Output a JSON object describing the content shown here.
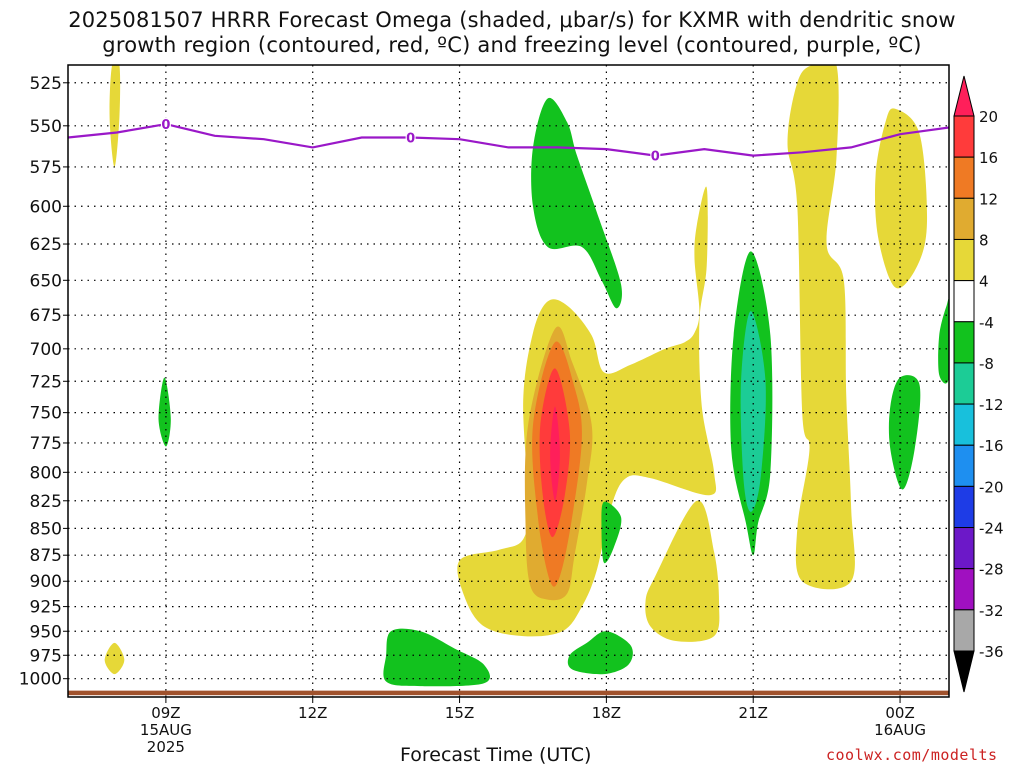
{
  "title_line1": "2025081507 HRRR Forecast Omega (shaded, μbar/s) for KXMR with dendritic snow",
  "title_line2": "growth region (contoured, red, ºC) and freezing level (contoured, purple, ºC)",
  "xlabel": "Forecast Time (UTC)",
  "credit": "coolwx.com/modelts",
  "chart_data": {
    "type": "heatmap",
    "title": "2025081507 HRRR Forecast Omega (shaded, μbar/s) for KXMR with dendritic snow growth region (contoured, red, ºC) and freezing level (contoured, purple, ºC)",
    "xlabel": "Forecast Time (UTC)",
    "ylabel": "",
    "y_scale": "log-pressure, inverted",
    "ylim": [
      1020,
      515
    ],
    "xlim": [
      7.0,
      25.0
    ],
    "y_ticks": [
      525,
      550,
      575,
      600,
      625,
      650,
      675,
      700,
      725,
      750,
      775,
      800,
      825,
      850,
      875,
      900,
      925,
      950,
      975,
      1000
    ],
    "x_ticks": [
      {
        "hour": 9,
        "lines": [
          "09Z",
          "15AUG",
          "2025"
        ]
      },
      {
        "hour": 12,
        "lines": [
          "12Z"
        ]
      },
      {
        "hour": 15,
        "lines": [
          "15Z"
        ]
      },
      {
        "hour": 18,
        "lines": [
          "18Z"
        ]
      },
      {
        "hour": 21,
        "lines": [
          "21Z"
        ]
      },
      {
        "hour": 24,
        "lines": [
          "00Z",
          "16AUG"
        ]
      }
    ],
    "grid": true,
    "colorbar": {
      "labels": [
        "20",
        "16",
        "12",
        "8",
        "4",
        "-4",
        "-8",
        "-12",
        "-16",
        "-20",
        "-24",
        "-28",
        "-32",
        "-36"
      ],
      "colors": [
        "#ff1f5a",
        "#ff3b3b",
        "#ef7a24",
        "#e0ab30",
        "#e6d838",
        "#ffffff",
        "#12c21e",
        "#1ccc96",
        "#18c0dc",
        "#1e8ff0",
        "#1e3ce6",
        "#6c18c8",
        "#a010c0",
        "#a8a8a8",
        "#000000"
      ]
    },
    "freezing_level": {
      "color": "#9a18c8",
      "label": "0",
      "points": [
        [
          7.0,
          557
        ],
        [
          8.0,
          554
        ],
        [
          9.0,
          549
        ],
        [
          10.0,
          556
        ],
        [
          11.0,
          558
        ],
        [
          12.0,
          563
        ],
        [
          13.0,
          557
        ],
        [
          14.0,
          557
        ],
        [
          15.0,
          558
        ],
        [
          16.0,
          563
        ],
        [
          17.0,
          563
        ],
        [
          18.0,
          564
        ],
        [
          19.0,
          568
        ],
        [
          20.0,
          564
        ],
        [
          21.0,
          568
        ],
        [
          22.0,
          566
        ],
        [
          23.0,
          563
        ],
        [
          24.0,
          555
        ],
        [
          25.0,
          551
        ]
      ],
      "label_hours": [
        9.0,
        14.0,
        19.0
      ]
    },
    "omega_regions": [
      {
        "value": 5,
        "color": "#e6d838",
        "points": [
          [
            7.9,
            515
          ],
          [
            8.05,
            515
          ],
          [
            8.05,
            545
          ],
          [
            7.95,
            575
          ],
          [
            7.85,
            545
          ]
        ]
      },
      {
        "value": -6,
        "color": "#12c21e",
        "points": [
          [
            8.97,
            722
          ],
          [
            9.1,
            755
          ],
          [
            9.0,
            778
          ],
          [
            8.85,
            755
          ]
        ]
      },
      {
        "value": 5,
        "color": "#e6d838",
        "points": [
          [
            7.95,
            962
          ],
          [
            8.15,
            980
          ],
          [
            7.95,
            995
          ],
          [
            7.75,
            980
          ]
        ]
      },
      {
        "value": -6,
        "color": "#12c21e",
        "points": [
          [
            13.6,
            950
          ],
          [
            14.2,
            950
          ],
          [
            14.9,
            968
          ],
          [
            15.5,
            985
          ],
          [
            15.5,
            1005
          ],
          [
            14.2,
            1008
          ],
          [
            13.5,
            1003
          ],
          [
            13.5,
            975
          ]
        ]
      },
      {
        "value": 5,
        "color": "#e6d838",
        "points": [
          [
            16.8,
            665
          ],
          [
            17.2,
            668
          ],
          [
            17.7,
            690
          ],
          [
            17.95,
            718
          ],
          [
            18.5,
            712
          ],
          [
            19.2,
            700
          ],
          [
            19.6,
            695
          ],
          [
            19.8,
            688
          ],
          [
            19.9,
            672
          ],
          [
            19.8,
            635
          ],
          [
            19.85,
            612
          ],
          [
            20.05,
            588
          ],
          [
            20.05,
            640
          ],
          [
            19.9,
            680
          ],
          [
            19.95,
            745
          ],
          [
            20.2,
            800
          ],
          [
            20.1,
            820
          ],
          [
            18.9,
            805
          ],
          [
            18.4,
            805
          ],
          [
            18.1,
            830
          ],
          [
            17.8,
            890
          ],
          [
            17.5,
            925
          ],
          [
            17.1,
            950
          ],
          [
            16.3,
            955
          ],
          [
            15.5,
            945
          ],
          [
            15.1,
            915
          ],
          [
            15.0,
            880
          ],
          [
            15.8,
            870
          ],
          [
            16.3,
            860
          ],
          [
            16.4,
            825
          ],
          [
            16.3,
            740
          ],
          [
            16.5,
            688
          ]
        ]
      },
      {
        "value": 9,
        "color": "#e0ab30",
        "points": [
          [
            16.95,
            685
          ],
          [
            17.3,
            710
          ],
          [
            17.7,
            760
          ],
          [
            17.6,
            810
          ],
          [
            17.35,
            875
          ],
          [
            17.2,
            912
          ],
          [
            16.8,
            918
          ],
          [
            16.45,
            905
          ],
          [
            16.35,
            850
          ],
          [
            16.4,
            760
          ]
        ]
      },
      {
        "value": 13,
        "color": "#ef7a24",
        "points": [
          [
            16.95,
            695
          ],
          [
            17.35,
            730
          ],
          [
            17.5,
            770
          ],
          [
            17.3,
            840
          ],
          [
            17.05,
            895
          ],
          [
            16.85,
            900
          ],
          [
            16.6,
            840
          ],
          [
            16.5,
            760
          ]
        ]
      },
      {
        "value": 17,
        "color": "#ff3b3b",
        "points": [
          [
            16.95,
            715
          ],
          [
            17.25,
            765
          ],
          [
            17.15,
            820
          ],
          [
            16.9,
            858
          ],
          [
            16.7,
            820
          ],
          [
            16.65,
            760
          ]
        ]
      },
      {
        "value": 20,
        "color": "#ff1f5a",
        "points": [
          [
            16.95,
            745
          ],
          [
            17.05,
            785
          ],
          [
            16.95,
            825
          ],
          [
            16.85,
            785
          ]
        ]
      },
      {
        "value": -6,
        "color": "#12c21e",
        "points": [
          [
            16.8,
            534
          ],
          [
            17.2,
            548
          ],
          [
            17.4,
            568
          ],
          [
            17.85,
            608
          ],
          [
            18.3,
            653
          ],
          [
            18.2,
            670
          ],
          [
            17.9,
            650
          ],
          [
            17.5,
            627
          ],
          [
            16.8,
            627
          ],
          [
            16.5,
            600
          ],
          [
            16.5,
            563
          ]
        ]
      },
      {
        "value": -6,
        "color": "#12c21e",
        "points": [
          [
            17.95,
            826
          ],
          [
            18.3,
            840
          ],
          [
            18.15,
            868
          ],
          [
            17.95,
            882
          ],
          [
            17.9,
            850
          ]
        ]
      },
      {
        "value": -6,
        "color": "#12c21e",
        "points": [
          [
            18.0,
            950
          ],
          [
            18.5,
            965
          ],
          [
            18.45,
            985
          ],
          [
            17.95,
            995
          ],
          [
            17.3,
            990
          ],
          [
            17.25,
            975
          ],
          [
            17.6,
            962
          ]
        ]
      },
      {
        "value": 5,
        "color": "#e6d838",
        "points": [
          [
            19.85,
            825
          ],
          [
            20.2,
            872
          ],
          [
            20.3,
            920
          ],
          [
            20.2,
            955
          ],
          [
            19.4,
            960
          ],
          [
            18.9,
            945
          ],
          [
            18.8,
            920
          ],
          [
            19.0,
            895
          ]
        ]
      },
      {
        "value": -6,
        "color": "#12c21e",
        "points": [
          [
            20.95,
            630
          ],
          [
            21.35,
            690
          ],
          [
            21.35,
            800
          ],
          [
            21.1,
            845
          ],
          [
            21.0,
            875
          ],
          [
            20.85,
            845
          ],
          [
            20.55,
            780
          ],
          [
            20.6,
            690
          ]
        ]
      },
      {
        "value": -10,
        "color": "#1ccc96",
        "points": [
          [
            20.95,
            672
          ],
          [
            21.25,
            725
          ],
          [
            21.15,
            805
          ],
          [
            20.95,
            835
          ],
          [
            20.8,
            805
          ],
          [
            20.75,
            725
          ]
        ]
      },
      {
        "value": 5,
        "color": "#e6d838",
        "points": [
          [
            22.2,
            515
          ],
          [
            22.7,
            515
          ],
          [
            22.7,
            570
          ],
          [
            22.5,
            625
          ],
          [
            22.85,
            650
          ],
          [
            22.9,
            735
          ],
          [
            23.0,
            830
          ],
          [
            23.0,
            900
          ],
          [
            22.0,
            900
          ],
          [
            21.9,
            850
          ],
          [
            22.15,
            780
          ],
          [
            22.0,
            750
          ],
          [
            21.9,
            600
          ],
          [
            21.7,
            560
          ],
          [
            21.9,
            525
          ]
        ]
      },
      {
        "value": 5,
        "color": "#e6d838",
        "points": [
          [
            23.9,
            540
          ],
          [
            24.4,
            555
          ],
          [
            24.55,
            610
          ],
          [
            24.35,
            640
          ],
          [
            23.9,
            655
          ],
          [
            23.55,
            620
          ],
          [
            23.5,
            580
          ],
          [
            23.7,
            548
          ]
        ]
      },
      {
        "value": -6,
        "color": "#12c21e",
        "points": [
          [
            24.0,
            722
          ],
          [
            24.4,
            728
          ],
          [
            24.3,
            780
          ],
          [
            24.05,
            815
          ],
          [
            23.8,
            780
          ],
          [
            23.8,
            745
          ]
        ]
      },
      {
        "value": -6,
        "color": "#12c21e",
        "points": [
          [
            24.95,
            668
          ],
          [
            25.0,
            668
          ],
          [
            25.0,
            722
          ],
          [
            24.8,
            720
          ],
          [
            24.8,
            690
          ]
        ]
      }
    ],
    "surface_band": {
      "color": "#a0522d",
      "pressure_top": 1013,
      "pressure_bottom": 1018
    }
  }
}
